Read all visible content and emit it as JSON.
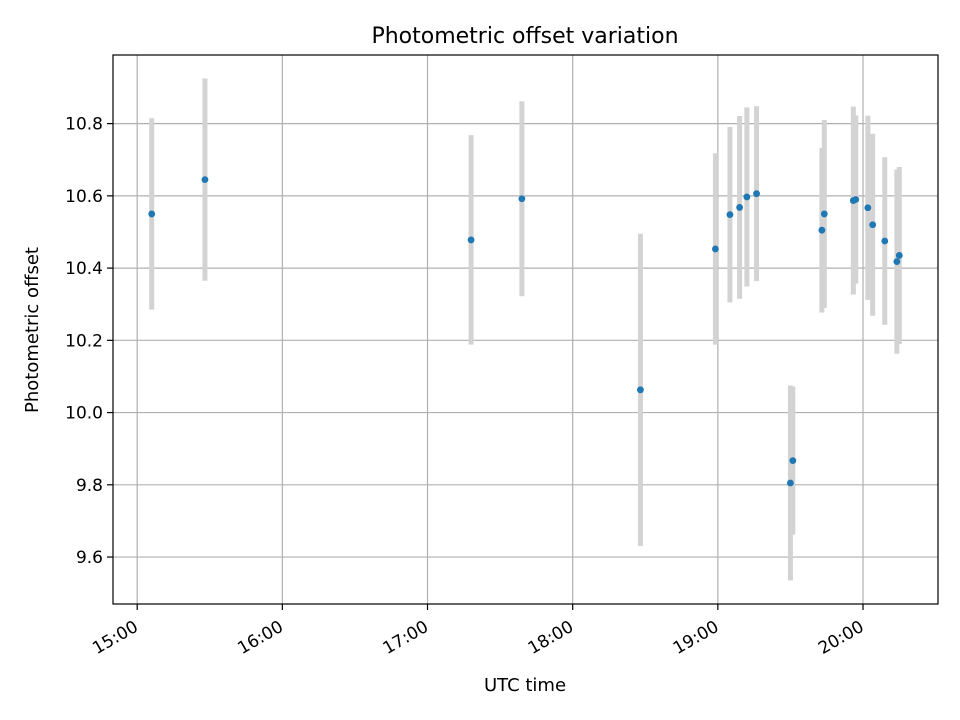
{
  "chart_data": {
    "type": "scatter",
    "title": "Photometric offset variation",
    "xlabel": "UTC time",
    "ylabel": "Photometric offset",
    "x_unit": "UTC time (HH:MM)",
    "xlim": [
      "14:50",
      "20:31"
    ],
    "ylim": [
      9.47,
      10.99
    ],
    "grid": true,
    "x_ticks": [
      "15:00",
      "16:00",
      "17:00",
      "18:00",
      "19:00",
      "20:00"
    ],
    "y_ticks": [
      "9.6",
      "9.8",
      "10.0",
      "10.2",
      "10.4",
      "10.6",
      "10.8"
    ],
    "colors": {
      "marker": "#1f77b4",
      "errorbar": "#d3d3d3",
      "grid": "#b0b0b0"
    },
    "series": [
      {
        "points": [
          {
            "x": "15:06",
            "y": 10.55,
            "yerr": 0.265
          },
          {
            "x": "15:28",
            "y": 10.645,
            "yerr": 0.28
          },
          {
            "x": "17:18",
            "y": 10.478,
            "yerr": 0.29
          },
          {
            "x": "17:39",
            "y": 10.592,
            "yerr": 0.27
          },
          {
            "x": "18:28",
            "y": 10.063,
            "yerr": 0.432
          },
          {
            "x": "18:59",
            "y": 10.453,
            "yerr": 0.265
          },
          {
            "x": "19:05",
            "y": 10.548,
            "yerr": 0.243
          },
          {
            "x": "19:09",
            "y": 10.568,
            "yerr": 0.253
          },
          {
            "x": "19:12",
            "y": 10.597,
            "yerr": 0.248
          },
          {
            "x": "19:16",
            "y": 10.606,
            "yerr": 0.242
          },
          {
            "x": "19:30",
            "y": 9.805,
            "yerr": 0.27
          },
          {
            "x": "19:31",
            "y": 9.867,
            "yerr": 0.205
          },
          {
            "x": "19:43",
            "y": 10.505,
            "yerr": 0.228
          },
          {
            "x": "19:44",
            "y": 10.55,
            "yerr": 0.26
          },
          {
            "x": "19:56",
            "y": 10.587,
            "yerr": 0.26
          },
          {
            "x": "19:57",
            "y": 10.59,
            "yerr": 0.233
          },
          {
            "x": "20:02",
            "y": 10.567,
            "yerr": 0.255
          },
          {
            "x": "20:04",
            "y": 10.52,
            "yerr": 0.252
          },
          {
            "x": "20:09",
            "y": 10.475,
            "yerr": 0.232
          },
          {
            "x": "20:14",
            "y": 10.418,
            "yerr": 0.255
          },
          {
            "x": "20:15",
            "y": 10.435,
            "yerr": 0.245
          }
        ]
      }
    ]
  }
}
